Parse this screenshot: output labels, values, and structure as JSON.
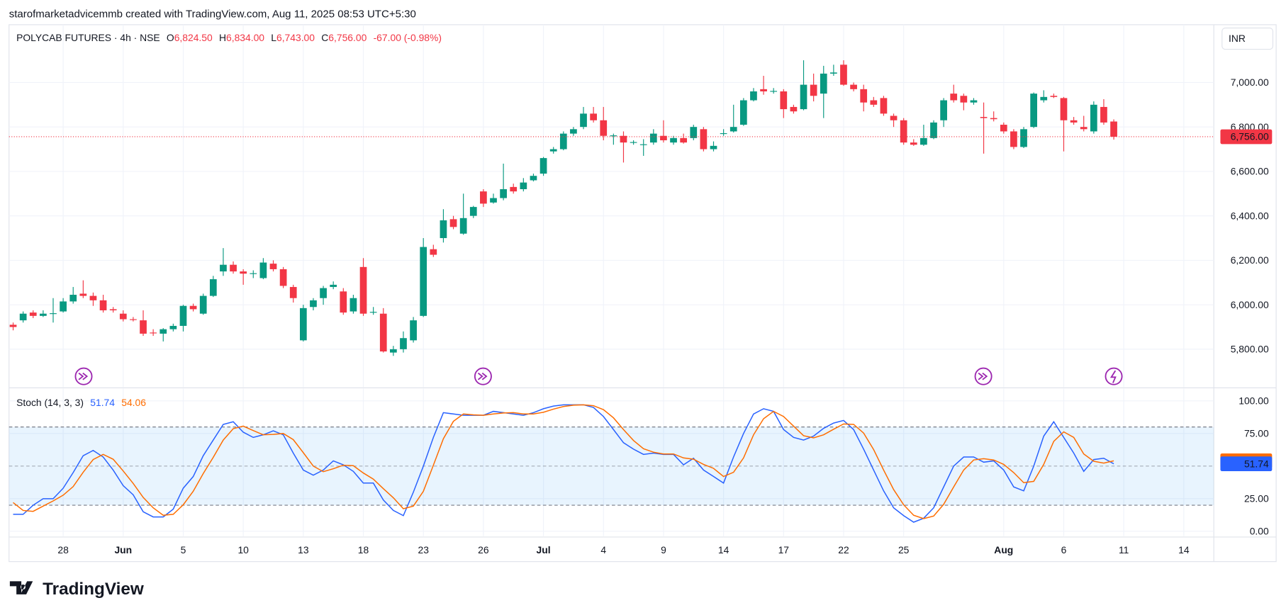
{
  "caption": "starofmarketadvicemmb created with TradingView.com, Aug 11, 2025 08:53 UTC+5:30",
  "brand": "TradingView",
  "chart_data": [
    {
      "type": "candlestick",
      "title": "POLYCAB FUTURES · 4h · NSE",
      "ohlc_legend": [
        {
          "key": "O",
          "value": "6,824.50"
        },
        {
          "key": "H",
          "value": "6,834.00"
        },
        {
          "key": "L",
          "value": "6,743.00"
        },
        {
          "key": "C",
          "value": "6,756.00"
        }
      ],
      "change": "-67.00 (-0.98%)",
      "currency": "INR",
      "up_color": "#089981",
      "down_color": "#f23645",
      "open": [
        5910,
        5930,
        5965,
        5950,
        5960,
        5970,
        6015,
        6050,
        6040,
        6020,
        5980,
        5960,
        5935,
        5930,
        5875,
        5870,
        5890,
        5905,
        5995,
        5960,
        6040,
        6150,
        6180,
        6150,
        6140,
        6120,
        6185,
        6160,
        6080,
        5840,
        5990,
        6030,
        6080,
        6060,
        5970,
        6170,
        5965,
        5960,
        5785,
        5800,
        5840,
        5950,
        6250,
        6300,
        6385,
        6320,
        6400,
        6510,
        6460,
        6480,
        6530,
        6520,
        6560,
        6590,
        6690,
        6700,
        6770,
        6800,
        6860,
        6830,
        6760,
        6760,
        6730,
        6720,
        6730,
        6760,
        6730,
        6750,
        6750,
        6790,
        6700,
        6770,
        6780,
        6810,
        6920,
        6970,
        6960,
        6960,
        6890,
        6880,
        6990,
        6950,
        7040,
        7080,
        6990,
        6970,
        6920,
        6930,
        6850,
        6830,
        6730,
        6720,
        6750,
        6830,
        6950,
        6940,
        6910,
        6845,
        6840,
        6810,
        6780,
        6710,
        6800,
        6920,
        6940,
        6930,
        6830,
        6800,
        6780,
        6890,
        6824.5
      ],
      "high": [
        5920,
        5970,
        5975,
        5975,
        6030,
        6030,
        6080,
        6110,
        6055,
        6045,
        5990,
        5975,
        5945,
        5975,
        5890,
        5895,
        5915,
        6000,
        6005,
        6050,
        6130,
        6255,
        6195,
        6160,
        6155,
        6210,
        6200,
        6170,
        6090,
        6000,
        6030,
        6085,
        6105,
        6075,
        6045,
        6210,
        5990,
        5985,
        5815,
        5880,
        5945,
        6300,
        6270,
        6430,
        6400,
        6500,
        6445,
        6520,
        6500,
        6635,
        6545,
        6570,
        6590,
        6665,
        6710,
        6780,
        6800,
        6890,
        6890,
        6890,
        6770,
        6780,
        6740,
        6745,
        6790,
        6830,
        6760,
        6770,
        6810,
        6800,
        6735,
        6790,
        6900,
        6930,
        6975,
        7030,
        6975,
        6970,
        6900,
        7100,
        7040,
        7075,
        7080,
        7100,
        7000,
        6990,
        6935,
        6940,
        6860,
        6840,
        6745,
        6810,
        6830,
        6930,
        6990,
        6950,
        6930,
        6910,
        6870,
        6820,
        6790,
        6800,
        6955,
        6965,
        6950,
        6935,
        6845,
        6850,
        6915,
        6925,
        6834
      ],
      "low": [
        5885,
        5920,
        5940,
        5945,
        5920,
        5965,
        6005,
        6030,
        5995,
        5965,
        5965,
        5925,
        5925,
        5860,
        5860,
        5835,
        5880,
        5880,
        5970,
        5955,
        6035,
        6130,
        6140,
        6090,
        6120,
        6115,
        6150,
        6075,
        6010,
        5835,
        5975,
        6000,
        6070,
        5955,
        5960,
        5950,
        5955,
        5785,
        5770,
        5785,
        5830,
        5945,
        6215,
        6280,
        6340,
        6315,
        6390,
        6440,
        6455,
        6470,
        6500,
        6510,
        6555,
        6580,
        6680,
        6695,
        6760,
        6790,
        6820,
        6740,
        6720,
        6640,
        6720,
        6670,
        6720,
        6730,
        6720,
        6725,
        6740,
        6690,
        6690,
        6760,
        6775,
        6805,
        6915,
        6945,
        6950,
        6840,
        6860,
        6875,
        6915,
        6840,
        7030,
        6985,
        6960,
        6870,
        6890,
        6850,
        6800,
        6720,
        6715,
        6715,
        6745,
        6800,
        6910,
        6875,
        6900,
        6680,
        6825,
        6770,
        6700,
        6705,
        6795,
        6910,
        6930,
        6690,
        6810,
        6780,
        6770,
        6810,
        6743
      ],
      "close": [
        5900,
        5960,
        5950,
        5960,
        5962,
        6015,
        6045,
        6040,
        6020,
        5975,
        5975,
        5935,
        5932,
        5870,
        5872,
        5890,
        5905,
        5995,
        5980,
        6040,
        6115,
        6180,
        6150,
        6140,
        6142,
        6190,
        6160,
        6085,
        6030,
        5985,
        6020,
        6075,
        6090,
        5965,
        6030,
        5960,
        5968,
        5790,
        5800,
        5850,
        5930,
        6260,
        6225,
        6380,
        6350,
        6390,
        6440,
        6455,
        6480,
        6520,
        6510,
        6550,
        6580,
        6660,
        6700,
        6770,
        6790,
        6860,
        6830,
        6760,
        6762,
        6730,
        6732,
        6722,
        6770,
        6740,
        6750,
        6730,
        6800,
        6700,
        6715,
        6772,
        6800,
        6920,
        6960,
        6960,
        6962,
        6880,
        6870,
        6990,
        6940,
        7040,
        7045,
        6990,
        6970,
        6910,
        6900,
        6860,
        6830,
        6730,
        6720,
        6750,
        6820,
        6920,
        6920,
        6910,
        6920,
        6840,
        6835,
        6780,
        6710,
        6790,
        6950,
        6935,
        6935,
        6830,
        6820,
        6790,
        6900,
        6820,
        6756
      ],
      "ylim": [
        5630,
        7260
      ],
      "yticks": [
        {
          "value": 5800,
          "label": "5,800.00"
        },
        {
          "value": 6000,
          "label": "6,000.00"
        },
        {
          "value": 6200,
          "label": "6,200.00"
        },
        {
          "value": 6400,
          "label": "6,400.00"
        },
        {
          "value": 6600,
          "label": "6,600.00"
        },
        {
          "value": 6800,
          "label": "6,800.00"
        },
        {
          "value": 7000,
          "label": "7,000.00"
        }
      ],
      "xlim": [
        -0.33,
        120
      ],
      "grid": true
    },
    {
      "type": "line",
      "title": "Stoch (14, 3, 3)",
      "series": [
        {
          "color": "#2962ff",
          "values": [
            13,
            13,
            20,
            25,
            25,
            33,
            45,
            58,
            62,
            57,
            47,
            35,
            28,
            15,
            11,
            11,
            17,
            33,
            42,
            58,
            70,
            82,
            84,
            76,
            72,
            74,
            77,
            74,
            60,
            47,
            43,
            47,
            54,
            51,
            46,
            37,
            37,
            24,
            16,
            12,
            30,
            50,
            72,
            91,
            90,
            89,
            89,
            89,
            92,
            91,
            90,
            89,
            91,
            94,
            96,
            97,
            97,
            97,
            95,
            88,
            78,
            68,
            63,
            59,
            60,
            59,
            59,
            51,
            56,
            47,
            42,
            37,
            57,
            75,
            90,
            94,
            92,
            78,
            72,
            70,
            73,
            79,
            83,
            85,
            78,
            63,
            47,
            31,
            18,
            12,
            7,
            10,
            18,
            34,
            50,
            57,
            57,
            53,
            54,
            47,
            34,
            31,
            50,
            73,
            84,
            72,
            60,
            46,
            55,
            56,
            51.74
          ]
        },
        {
          "color": "#ff6d00",
          "values": [
            22,
            16,
            15.3,
            19.3,
            23.3,
            27.7,
            34.3,
            45.3,
            55,
            59,
            55.3,
            46.3,
            36.7,
            26,
            18,
            12.3,
            13,
            20.3,
            30.7,
            44.3,
            56.7,
            70,
            78.7,
            80.7,
            77.3,
            74,
            74.3,
            75,
            70.3,
            60.3,
            50,
            45.7,
            48,
            50.7,
            50.3,
            44.7,
            40,
            32.7,
            25.7,
            17.3,
            19.3,
            30.7,
            50.7,
            71,
            84.3,
            90,
            89.3,
            89,
            90,
            90.7,
            91,
            90,
            90,
            91.3,
            93.7,
            95.7,
            96.7,
            97,
            96.3,
            93.3,
            87,
            78,
            69.7,
            63.3,
            60.7,
            59.3,
            59.3,
            56.3,
            55.3,
            51.3,
            48.3,
            42,
            45.3,
            56.3,
            74,
            86.3,
            92,
            88,
            80.7,
            73.3,
            71.7,
            74,
            78.3,
            82.3,
            82,
            75.3,
            62.7,
            47,
            32,
            20.3,
            12.3,
            9.7,
            11.7,
            20.7,
            34,
            47,
            54.7,
            55.7,
            54.7,
            51.3,
            45,
            37.3,
            38.3,
            51.3,
            69,
            76.3,
            72,
            59.3,
            53.7,
            52.3,
            54.06
          ]
        }
      ],
      "band": [
        20,
        80
      ],
      "midline": 50,
      "band_color": "#2196f3",
      "ylim": [
        -2.5,
        109.4
      ],
      "yticks": [
        {
          "value": 0,
          "label": "0.00"
        },
        {
          "value": 25,
          "label": "25.00"
        },
        {
          "value": 75,
          "label": "75.00"
        },
        {
          "value": 100,
          "label": "100.00"
        }
      ],
      "xlim": [
        -0.33,
        120
      ],
      "xticks": [
        {
          "value": 5,
          "label": "28"
        },
        {
          "value": 11,
          "label": "Jun"
        },
        {
          "value": 17,
          "label": "5"
        },
        {
          "value": 23,
          "label": "10"
        },
        {
          "value": 29,
          "label": "13"
        },
        {
          "value": 35,
          "label": "18"
        },
        {
          "value": 41,
          "label": "23"
        },
        {
          "value": 47,
          "label": "26"
        },
        {
          "value": 53,
          "label": "Jul"
        },
        {
          "value": 59,
          "label": "4"
        },
        {
          "value": 65,
          "label": "9"
        },
        {
          "value": 71,
          "label": "14"
        },
        {
          "value": 77,
          "label": "17"
        },
        {
          "value": 83,
          "label": "22"
        },
        {
          "value": 89,
          "label": "25"
        },
        {
          "value": 99,
          "label": "Aug"
        },
        {
          "value": 105,
          "label": "6"
        },
        {
          "value": 111,
          "label": "11"
        },
        {
          "value": 117,
          "label": "14"
        }
      ],
      "grid": true
    }
  ]
}
